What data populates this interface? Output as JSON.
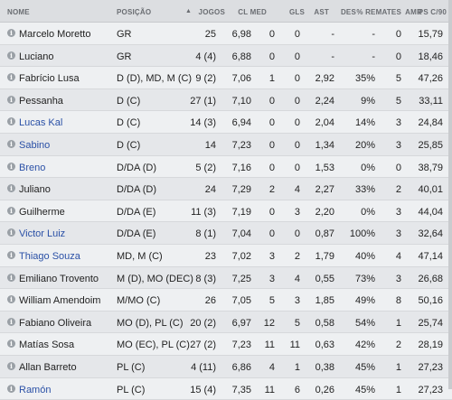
{
  "headers": {
    "nome": "NOME",
    "posicao": "POSIÇÃO",
    "sort_arrow": "▲",
    "jogos": "JOGOS",
    "clmed": "CL MED",
    "gls": "GLS",
    "ast": "AST",
    "des": "DES",
    "remates": "% REMATES",
    "amr": "AMR",
    "ps90": "PS C/90"
  },
  "info_glyph": "i",
  "rows": [
    {
      "name": "Marcelo Moretto",
      "link": false,
      "pos": "GR",
      "jogos": "25",
      "clmed": "6,98",
      "gls": "0",
      "ast": "0",
      "des": "-",
      "rem": "-",
      "amr": "0",
      "ps": "15,79"
    },
    {
      "name": "Luciano",
      "link": false,
      "pos": "GR",
      "jogos": "4 (4)",
      "clmed": "6,88",
      "gls": "0",
      "ast": "0",
      "des": "-",
      "rem": "-",
      "amr": "0",
      "ps": "18,46"
    },
    {
      "name": "Fabrício Lusa",
      "link": false,
      "pos": "D (D), MD, M (C)",
      "jogos": "9 (2)",
      "clmed": "7,06",
      "gls": "1",
      "ast": "0",
      "des": "2,92",
      "rem": "35%",
      "amr": "5",
      "ps": "47,26"
    },
    {
      "name": "Pessanha",
      "link": false,
      "pos": "D (C)",
      "jogos": "27 (1)",
      "clmed": "7,10",
      "gls": "0",
      "ast": "0",
      "des": "2,24",
      "rem": "9%",
      "amr": "5",
      "ps": "33,11"
    },
    {
      "name": "Lucas Kal",
      "link": true,
      "pos": "D (C)",
      "jogos": "14 (3)",
      "clmed": "6,94",
      "gls": "0",
      "ast": "0",
      "des": "2,04",
      "rem": "14%",
      "amr": "3",
      "ps": "24,84"
    },
    {
      "name": "Sabino",
      "link": true,
      "pos": "D (C)",
      "jogos": "14",
      "clmed": "7,23",
      "gls": "0",
      "ast": "0",
      "des": "1,34",
      "rem": "20%",
      "amr": "3",
      "ps": "25,85"
    },
    {
      "name": "Breno",
      "link": true,
      "pos": "D/DA (D)",
      "jogos": "5 (2)",
      "clmed": "7,16",
      "gls": "0",
      "ast": "0",
      "des": "1,53",
      "rem": "0%",
      "amr": "0",
      "ps": "38,79"
    },
    {
      "name": "Juliano",
      "link": false,
      "pos": "D/DA (D)",
      "jogos": "24",
      "clmed": "7,29",
      "gls": "2",
      "ast": "4",
      "des": "2,27",
      "rem": "33%",
      "amr": "2",
      "ps": "40,01"
    },
    {
      "name": "Guilherme",
      "link": false,
      "pos": "D/DA (E)",
      "jogos": "11 (3)",
      "clmed": "7,19",
      "gls": "0",
      "ast": "3",
      "des": "2,20",
      "rem": "0%",
      "amr": "3",
      "ps": "44,04"
    },
    {
      "name": "Victor Luiz",
      "link": true,
      "pos": "D/DA (E)",
      "jogos": "8 (1)",
      "clmed": "7,04",
      "gls": "0",
      "ast": "0",
      "des": "0,87",
      "rem": "100%",
      "amr": "3",
      "ps": "32,64"
    },
    {
      "name": "Thiago Souza",
      "link": true,
      "pos": "MD, M (C)",
      "jogos": "23",
      "clmed": "7,02",
      "gls": "3",
      "ast": "2",
      "des": "1,79",
      "rem": "40%",
      "amr": "4",
      "ps": "47,14"
    },
    {
      "name": "Emiliano Trovento",
      "link": false,
      "pos": "M (D), MO (DEC)",
      "jogos": "8 (3)",
      "clmed": "7,25",
      "gls": "3",
      "ast": "4",
      "des": "0,55",
      "rem": "73%",
      "amr": "3",
      "ps": "26,68"
    },
    {
      "name": "William Amendoim",
      "link": false,
      "pos": "M/MO (C)",
      "jogos": "26",
      "clmed": "7,05",
      "gls": "5",
      "ast": "3",
      "des": "1,85",
      "rem": "49%",
      "amr": "8",
      "ps": "50,16"
    },
    {
      "name": "Fabiano Oliveira",
      "link": false,
      "pos": "MO (D), PL (C)",
      "jogos": "20 (2)",
      "clmed": "6,97",
      "gls": "12",
      "ast": "5",
      "des": "0,58",
      "rem": "54%",
      "amr": "1",
      "ps": "25,74"
    },
    {
      "name": "Matías Sosa",
      "link": false,
      "pos": "MO (EC), PL (C)",
      "jogos": "27 (2)",
      "clmed": "7,23",
      "gls": "11",
      "ast": "11",
      "des": "0,63",
      "rem": "42%",
      "amr": "2",
      "ps": "28,19"
    },
    {
      "name": "Allan Barreto",
      "link": false,
      "pos": "PL (C)",
      "jogos": "4 (11)",
      "clmed": "6,86",
      "gls": "4",
      "ast": "1",
      "des": "0,38",
      "rem": "45%",
      "amr": "1",
      "ps": "27,23"
    },
    {
      "name": "Ramón",
      "link": true,
      "pos": "PL (C)",
      "jogos": "15 (4)",
      "clmed": "7,35",
      "gls": "11",
      "ast": "6",
      "des": "0,26",
      "rem": "45%",
      "amr": "1",
      "ps": "27,23"
    }
  ]
}
